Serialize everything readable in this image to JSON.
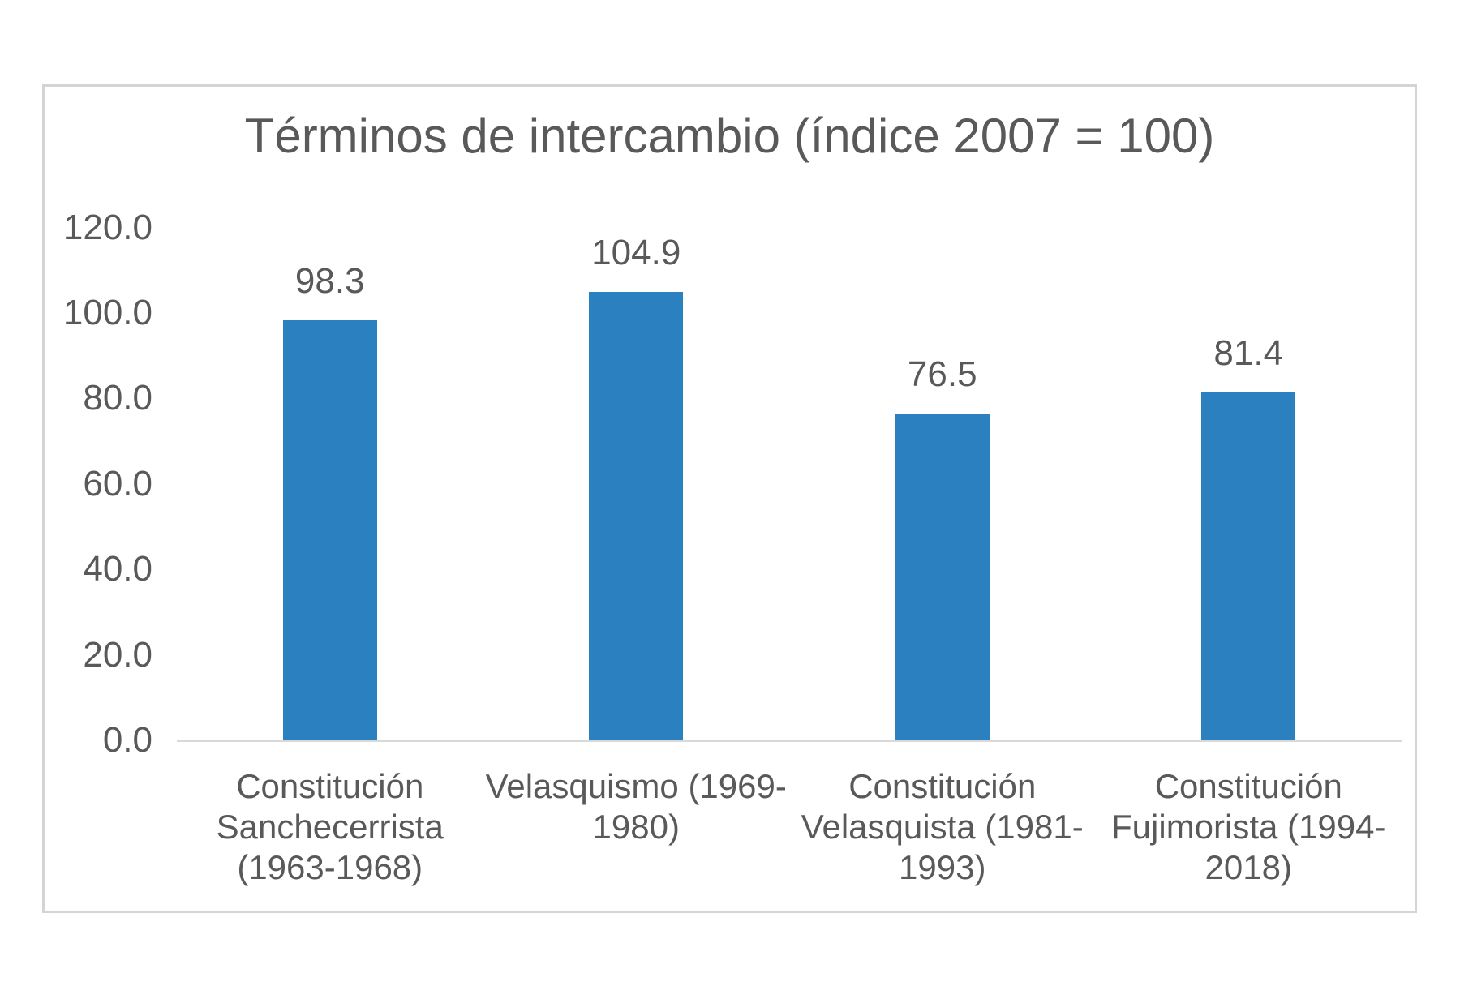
{
  "chart_data": {
    "type": "bar",
    "title": "Términos de intercambio (índice 2007 = 100)",
    "categories": [
      "Constitución Sanchecerrista (1963-1968)",
      "Velasquismo (1969-1980)",
      "Constitución Velasquista (1981-1993)",
      "Constitución Fujimorista (1994-2018)"
    ],
    "category_lines": [
      [
        "Constitución",
        "Sanchecerrista",
        "(1963-1968)"
      ],
      [
        "Velasquismo (1969-",
        "1980)"
      ],
      [
        "Constitución",
        "Velasquista (1981-",
        "1993)"
      ],
      [
        "Constitución",
        "Fujimorista (1994-",
        "2018)"
      ]
    ],
    "values": [
      98.3,
      104.9,
      76.5,
      81.4
    ],
    "data_labels": [
      "98.3",
      "104.9",
      "76.5",
      "81.4"
    ],
    "xlabel": "",
    "ylabel": "",
    "ylim": [
      0,
      120
    ],
    "y_ticks": [
      {
        "value": 120,
        "label": "120.0"
      },
      {
        "value": 100,
        "label": "100.0"
      },
      {
        "value": 80,
        "label": "80.0"
      },
      {
        "value": 60,
        "label": "60.0"
      },
      {
        "value": 40,
        "label": "40.0"
      },
      {
        "value": 20,
        "label": "20.0"
      },
      {
        "value": 0,
        "label": "0.0"
      }
    ],
    "grid": false,
    "legend": "none",
    "colors": {
      "bar": "#2B80C0",
      "text": "#595959",
      "axis": "#d9d9d9",
      "frame_border": "#d4d4d4",
      "background": "#ffffff"
    }
  }
}
